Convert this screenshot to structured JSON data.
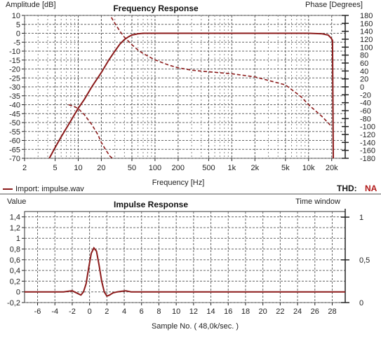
{
  "chart_data": [
    {
      "type": "line",
      "title": "Frequency Response",
      "ylabel": "Amplitude [dB]",
      "y2label": "Phase [Degrees]",
      "xlabel": "Frequency [Hz]",
      "xscale": "log",
      "xlim": [
        2,
        30000
      ],
      "ylim": [
        -70,
        10
      ],
      "y2lim": [
        -180,
        180
      ],
      "grid": true,
      "xticks": [
        2,
        5,
        10,
        20,
        50,
        100,
        200,
        500,
        1000,
        2000,
        5000,
        10000,
        20000
      ],
      "xtick_labels": [
        "2",
        "5",
        "10",
        "20",
        "50",
        "100",
        "200",
        "500",
        "1k",
        "2k",
        "5k",
        "10k",
        "20k"
      ],
      "yticks": [
        10,
        5,
        0,
        -5,
        -10,
        -15,
        -20,
        -25,
        -30,
        -35,
        -40,
        -45,
        -50,
        -55,
        -60,
        -65,
        -70
      ],
      "y2ticks": [
        180,
        160,
        140,
        120,
        100,
        80,
        60,
        40,
        20,
        0,
        -20,
        -40,
        -60,
        -80,
        -100,
        -120,
        -140,
        -160,
        -180
      ],
      "legend_entry": "Import: impulse.wav",
      "thd_label": "THD:",
      "thd_value": "NA",
      "series": [
        {
          "name": "Import: impulse.wav",
          "axis": "amplitude",
          "style": "solid",
          "color": "#8b1a1a",
          "x": [
            4.2,
            5,
            6,
            8,
            10,
            12,
            15,
            20,
            25,
            30,
            35,
            40,
            45,
            50,
            60,
            70,
            80,
            100,
            150,
            200,
            500,
            1000,
            5000,
            10000,
            15000,
            18000,
            19500,
            20500,
            21000
          ],
          "y": [
            -70,
            -64,
            -58,
            -49,
            -42,
            -37,
            -30,
            -22,
            -15,
            -10,
            -6,
            -3.5,
            -2,
            -1,
            -0.3,
            0,
            0,
            0,
            0,
            0,
            0,
            0,
            0,
            0,
            -0.3,
            -1,
            -2.5,
            -4,
            -70
          ]
        },
        {
          "axis": "phase",
          "style": "dashed",
          "color": "#8b1a1a",
          "x": [
            27,
            30,
            35,
            40,
            50,
            60,
            70,
            80,
            100,
            150,
            200,
            300,
            500,
            1000,
            2000,
            5000,
            8000,
            10000,
            15000,
            20000
          ],
          "y": [
            175,
            160,
            140,
            125,
            106,
            93,
            84,
            78,
            68,
            55,
            48,
            42,
            38,
            33,
            25,
            5,
            -25,
            -45,
            -75,
            -100
          ]
        },
        {
          "axis": "phase",
          "style": "dashed",
          "color": "#8b1a1a",
          "x": [
            7.5,
            9,
            10,
            12,
            15,
            18,
            20,
            23,
            26,
            28
          ],
          "y": [
            -45,
            -50,
            -55,
            -70,
            -95,
            -120,
            -140,
            -160,
            -175,
            -180
          ]
        }
      ]
    },
    {
      "type": "line",
      "title": "Impulse Response",
      "ylabel": "Value",
      "y2label": "Time window",
      "xlabel": "Sample No. ( 48,0k/sec. )",
      "xlim": [
        -7.5,
        29.5
      ],
      "ylim": [
        -0.2,
        1.5
      ],
      "y2lim": [
        0,
        1
      ],
      "grid": true,
      "xticks": [
        -6,
        -4,
        -2,
        0,
        2,
        4,
        6,
        8,
        10,
        12,
        14,
        16,
        18,
        20,
        22,
        24,
        26,
        28
      ],
      "yticks": [
        1.4,
        1.2,
        1,
        0.8,
        0.6,
        0.4,
        0.2,
        0,
        -0.2
      ],
      "ytick_labels": [
        "1,4",
        "1,2",
        "1",
        "0,8",
        "0,6",
        "0,4",
        "0,2",
        "0",
        "-0,2"
      ],
      "y2ticks": [
        1,
        0.5,
        0
      ],
      "y2tick_labels": [
        "1",
        "0,5",
        "0"
      ],
      "series": [
        {
          "name": "Impulse",
          "color": "#8b1a1a",
          "x": [
            -7.5,
            -4,
            -3,
            -2.5,
            -2,
            -1.5,
            -1,
            -0.7,
            -0.4,
            -0.1,
            0.2,
            0.5,
            0.8,
            1.1,
            1.4,
            1.7,
            2.0,
            2.3,
            2.7,
            3.2,
            3.7,
            4.2,
            4.8,
            6,
            10,
            29.5
          ],
          "y": [
            0,
            0,
            0,
            0.01,
            0.02,
            -0.02,
            -0.06,
            0.0,
            0.15,
            0.45,
            0.72,
            0.82,
            0.76,
            0.5,
            0.2,
            0.0,
            -0.08,
            -0.06,
            -0.02,
            0.0,
            0.01,
            0.02,
            0.0,
            0,
            0,
            0
          ]
        }
      ]
    }
  ]
}
